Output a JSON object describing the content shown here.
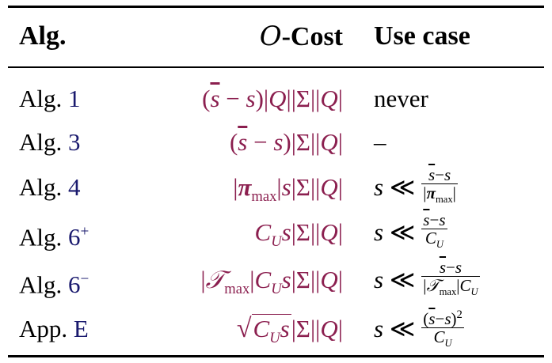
{
  "table": {
    "headers": {
      "alg": "Alg.",
      "cost_prefix": "O",
      "cost_suffix": "-Cost",
      "use_case": "Use case"
    },
    "rows": [
      {
        "alg_prefix": "Alg.",
        "alg_ref": "1",
        "cost": "(s̄ − s)|Q||Σ||Q|",
        "use_case": "never"
      },
      {
        "alg_prefix": "Alg.",
        "alg_ref": "3",
        "cost": "(s̄ − s)|Σ||Q|",
        "use_case": "–"
      },
      {
        "alg_prefix": "Alg.",
        "alg_ref": "4",
        "cost": "|π_max|s|Σ||Q|",
        "use_case_lhs": "s ≪",
        "use_case_num": "s̄−s",
        "use_case_den": "|π_max|"
      },
      {
        "alg_prefix": "Alg.",
        "alg_ref": "6",
        "alg_sup": "+",
        "cost": "C_U s|Σ||Q|",
        "use_case_lhs": "s ≪",
        "use_case_num": "s̄−s",
        "use_case_den": "C_U"
      },
      {
        "alg_prefix": "Alg.",
        "alg_ref": "6",
        "alg_sup": "−",
        "cost": "|T_max|C_U s|Σ||Q|",
        "use_case_lhs": "s ≪",
        "use_case_num": "s̄−s",
        "use_case_den": "|T_max|C_U"
      },
      {
        "alg_prefix": "App.",
        "alg_ref": "E",
        "cost": "√(C_U s)|Σ||Q|",
        "use_case_lhs": "s ≪",
        "use_case_num": "(s̄−s)²",
        "use_case_den": "C_U"
      }
    ]
  }
}
